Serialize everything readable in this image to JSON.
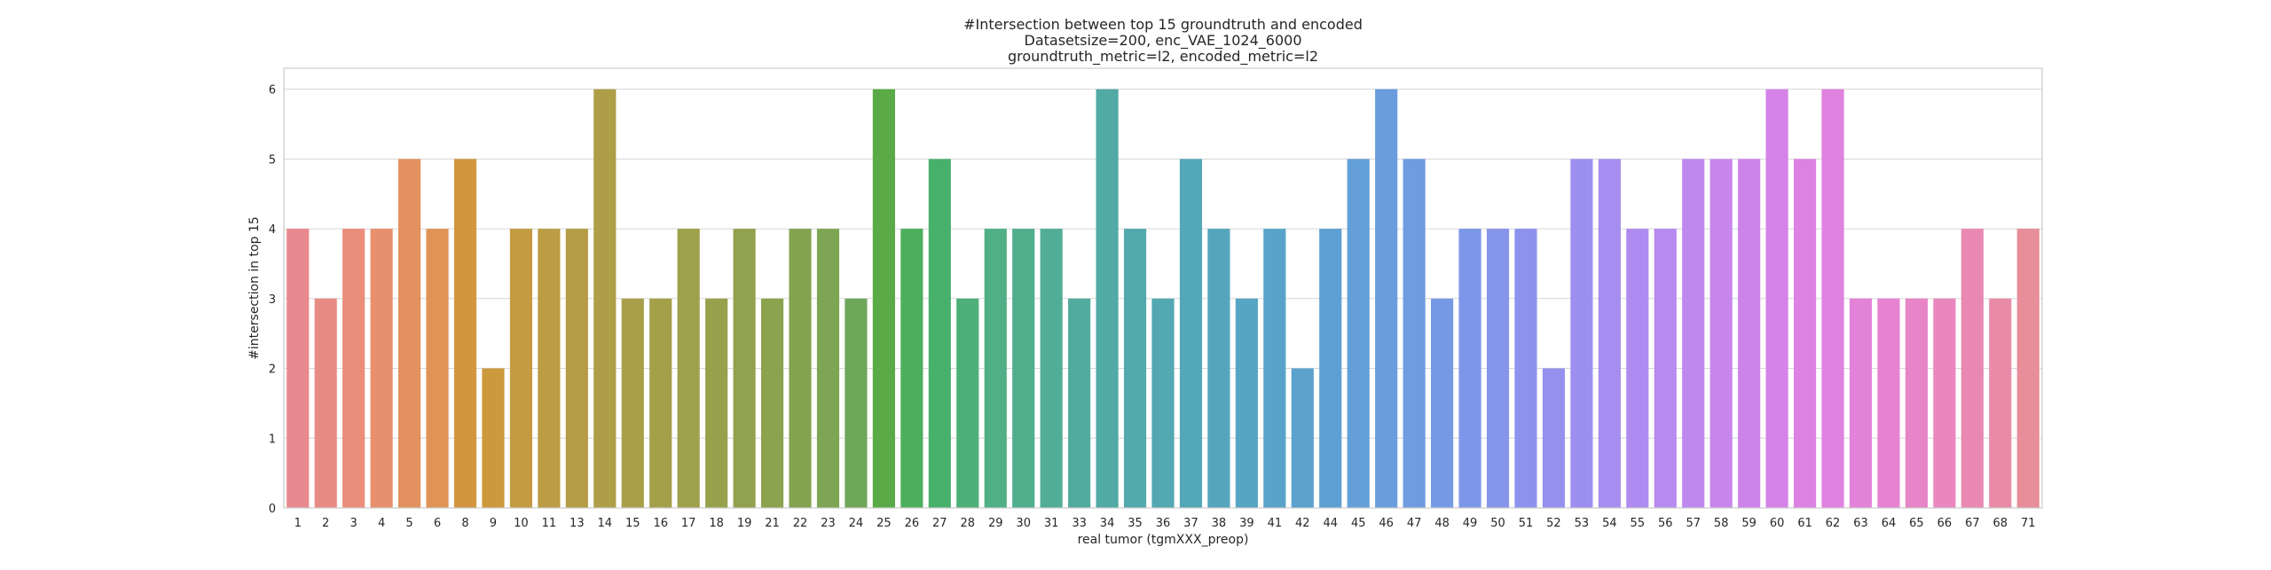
{
  "chart_data": {
    "type": "bar",
    "title": [
      "#Intersection between top 15 groundtruth and encoded",
      "Datasetsize=200, enc_VAE_1024_6000",
      "groundtruth_metric=l2, encoded_metric=l2"
    ],
    "xlabel": "real tumor (tgmXXX_preop)",
    "ylabel": "#intersection in top 15",
    "ylim": [
      0,
      6.3
    ],
    "yticks": [
      "0",
      "1",
      "2",
      "3",
      "4",
      "5",
      "6"
    ],
    "grid": true,
    "categories": [
      "1",
      "2",
      "3",
      "4",
      "5",
      "6",
      "8",
      "9",
      "10",
      "11",
      "13",
      "14",
      "15",
      "16",
      "17",
      "18",
      "19",
      "21",
      "22",
      "23",
      "24",
      "25",
      "26",
      "27",
      "28",
      "29",
      "30",
      "31",
      "33",
      "34",
      "35",
      "36",
      "37",
      "38",
      "39",
      "41",
      "42",
      "44",
      "45",
      "46",
      "47",
      "48",
      "49",
      "50",
      "51",
      "52",
      "53",
      "54",
      "55",
      "56",
      "57",
      "58",
      "59",
      "60",
      "61",
      "62",
      "63",
      "64",
      "65",
      "66",
      "67",
      "68",
      "71"
    ],
    "values": [
      4,
      3,
      4,
      4,
      5,
      4,
      5,
      2,
      4,
      4,
      4,
      6,
      3,
      3,
      4,
      3,
      4,
      3,
      4,
      4,
      3,
      6,
      4,
      5,
      3,
      4,
      4,
      4,
      3,
      6,
      4,
      3,
      5,
      4,
      3,
      4,
      2,
      4,
      5,
      6,
      5,
      3,
      4,
      4,
      4,
      2,
      5,
      5,
      4,
      4,
      5,
      5,
      5,
      6,
      5,
      6,
      3,
      3,
      3,
      3,
      4,
      3,
      4
    ],
    "colors": [
      "#e8898f",
      "#e98b85",
      "#ea8e7b",
      "#e7906d",
      "#e3915e",
      "#df9356",
      "#d2963f",
      "#cc9a3d",
      "#c49b40",
      "#bc9c44",
      "#b59d47",
      "#ae9e48",
      "#a99f49",
      "#a4a04a",
      "#9ea04b",
      "#97a14c",
      "#91a14d",
      "#8ba24f",
      "#84a351",
      "#7da554",
      "#6ea65a",
      "#5aab47",
      "#4daf5c",
      "#47b16c",
      "#4db079",
      "#50af84",
      "#50ae8d",
      "#51ad96",
      "#52ac9e",
      "#52aaa5",
      "#53a9ab",
      "#53a8b1",
      "#54a7b7",
      "#55a6bd",
      "#56a5c3",
      "#58a3c9",
      "#5ba2ce",
      "#5fa0d3",
      "#649fd8",
      "#699ddd",
      "#6f9be1",
      "#7699e4",
      "#7d97e8",
      "#8595ea",
      "#8d93ed",
      "#9591ee",
      "#9d8fef",
      "#a68df0",
      "#ae8bf0",
      "#b68aef",
      "#be88ee",
      "#c686ec",
      "#cd84ea",
      "#d583e7",
      "#db82e3",
      "#e082df",
      "#e382d9",
      "#e683d1",
      "#e885c8",
      "#e987be",
      "#e989b3",
      "#e98ba7",
      "#e88d9a"
    ]
  }
}
